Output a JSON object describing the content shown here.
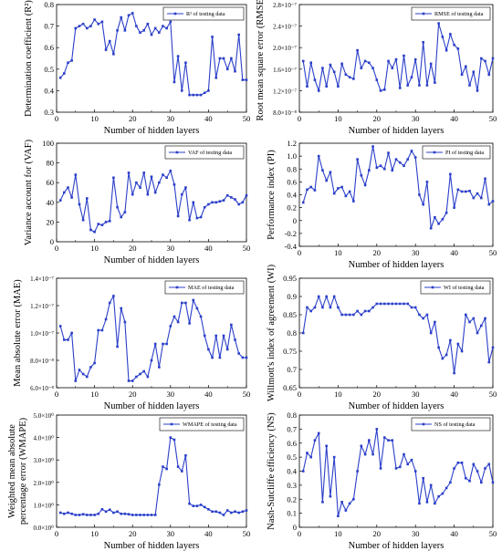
{
  "chart_data": [
    {
      "type": "line",
      "title": "",
      "xlabel": "Number of hidden layers",
      "ylabel": "Determination coefficient (R²)",
      "xlim": [
        0,
        50
      ],
      "ylim": [
        0.3,
        0.8
      ],
      "x_ticks": [
        "0",
        "10",
        "20",
        "30",
        "40",
        "50"
      ],
      "y_ticks": [
        "0.3",
        "0.4",
        "0.5",
        "0.6",
        "0.7",
        "0.8"
      ],
      "legend": "top-right",
      "color": "#2b3fc9",
      "series": [
        {
          "name": "R² of testing data",
          "x": [
            1,
            2,
            3,
            4,
            5,
            6,
            7,
            8,
            9,
            10,
            11,
            12,
            13,
            14,
            15,
            16,
            17,
            18,
            19,
            20,
            21,
            22,
            23,
            24,
            25,
            26,
            27,
            28,
            29,
            30,
            31,
            32,
            33,
            34,
            35,
            36,
            37,
            38,
            39,
            40,
            41,
            42,
            43,
            44,
            45,
            46,
            47,
            48,
            49,
            50
          ],
          "values": [
            0.46,
            0.48,
            0.53,
            0.54,
            0.69,
            0.7,
            0.71,
            0.69,
            0.7,
            0.73,
            0.71,
            0.72,
            0.59,
            0.63,
            0.57,
            0.68,
            0.74,
            0.68,
            0.75,
            0.76,
            0.7,
            0.67,
            0.68,
            0.71,
            0.66,
            0.69,
            0.67,
            0.7,
            0.69,
            0.72,
            0.44,
            0.56,
            0.4,
            0.53,
            0.38,
            0.38,
            0.38,
            0.38,
            0.39,
            0.4,
            0.65,
            0.46,
            0.55,
            0.55,
            0.5,
            0.55,
            0.49,
            0.66,
            0.45,
            0.45
          ]
        }
      ]
    },
    {
      "type": "line",
      "title": "",
      "xlabel": "Number of hidden layers",
      "ylabel": "Root mean square error (RMSE)",
      "xlim": [
        0,
        50
      ],
      "ylim": [
        0.8,
        2.8
      ],
      "y_scale_note": "×10⁻⁷",
      "x_ticks": [
        "0",
        "10",
        "20",
        "30",
        "40",
        "50"
      ],
      "y_ticks": [
        "8.0×10⁻⁸",
        "1.2×10⁻⁷",
        "1.6×10⁻⁷",
        "2.0×10⁻⁷",
        "2.4×10⁻⁷",
        "2.8×10⁻⁷"
      ],
      "legend": "top-right",
      "color": "#2b3fc9",
      "series": [
        {
          "name": "RMSE of testing data",
          "x": [
            1,
            2,
            3,
            4,
            5,
            6,
            7,
            8,
            9,
            10,
            11,
            12,
            13,
            14,
            15,
            16,
            17,
            18,
            19,
            20,
            21,
            22,
            23,
            24,
            25,
            26,
            27,
            28,
            29,
            30,
            31,
            32,
            33,
            34,
            35,
            36,
            37,
            38,
            39,
            40,
            41,
            42,
            43,
            44,
            45,
            46,
            47,
            48,
            49,
            50
          ],
          "values": [
            1.75,
            1.28,
            1.72,
            1.4,
            1.2,
            1.62,
            1.28,
            1.68,
            1.55,
            1.28,
            1.7,
            1.5,
            1.45,
            1.42,
            1.95,
            1.62,
            1.75,
            1.72,
            1.62,
            1.4,
            1.2,
            1.22,
            1.75,
            1.62,
            1.78,
            1.25,
            1.85,
            1.3,
            1.45,
            1.78,
            1.3,
            2.1,
            1.3,
            1.7,
            1.35,
            2.45,
            2.2,
            1.95,
            2.25,
            2.05,
            1.98,
            1.5,
            1.65,
            1.3,
            1.55,
            1.2,
            1.8,
            1.75,
            1.5,
            1.8
          ]
        }
      ]
    },
    {
      "type": "line",
      "title": "",
      "xlabel": "Number of hidden layers",
      "ylabel": "Variance account for (VAF)",
      "xlim": [
        0,
        50
      ],
      "ylim": [
        0,
        100
      ],
      "x_ticks": [
        "0",
        "10",
        "20",
        "30",
        "40",
        "50"
      ],
      "y_ticks": [
        "0",
        "20",
        "40",
        "60",
        "80",
        "100"
      ],
      "legend": "top-right",
      "color": "#2b3fc9",
      "series": [
        {
          "name": "VAF of testing data",
          "x": [
            1,
            2,
            3,
            4,
            5,
            6,
            7,
            8,
            9,
            10,
            11,
            12,
            13,
            14,
            15,
            16,
            17,
            18,
            19,
            20,
            21,
            22,
            23,
            24,
            25,
            26,
            27,
            28,
            29,
            30,
            31,
            32,
            33,
            34,
            35,
            36,
            37,
            38,
            39,
            40,
            41,
            42,
            43,
            44,
            45,
            46,
            47,
            48,
            49,
            50
          ],
          "values": [
            42,
            50,
            55,
            45,
            68,
            38,
            22,
            44,
            12,
            10,
            18,
            17,
            20,
            21,
            65,
            35,
            25,
            30,
            70,
            48,
            60,
            55,
            70,
            48,
            66,
            50,
            60,
            68,
            65,
            72,
            58,
            26,
            48,
            55,
            22,
            40,
            24,
            25,
            35,
            38,
            40,
            40,
            41,
            42,
            47,
            45,
            43,
            38,
            40,
            47
          ]
        }
      ]
    },
    {
      "type": "line",
      "title": "",
      "xlabel": "Number of hidden layers",
      "ylabel": "Performance index (PI)",
      "xlim": [
        0,
        50
      ],
      "ylim": [
        -0.4,
        1.2
      ],
      "x_ticks": [
        "0",
        "10",
        "20",
        "30",
        "40",
        "50"
      ],
      "y_ticks": [
        "-0.4",
        "-0.2",
        "0",
        "0.2",
        "0.4",
        "0.6",
        "0.8",
        "1.0",
        "1.2"
      ],
      "legend": "top-right",
      "color": "#2b3fc9",
      "series": [
        {
          "name": "PI of testing data",
          "x": [
            1,
            2,
            3,
            4,
            5,
            6,
            7,
            8,
            9,
            10,
            11,
            12,
            13,
            14,
            15,
            16,
            17,
            18,
            19,
            20,
            21,
            22,
            23,
            24,
            25,
            26,
            27,
            28,
            29,
            30,
            31,
            32,
            33,
            34,
            35,
            36,
            37,
            38,
            39,
            40,
            41,
            42,
            43,
            44,
            45,
            46,
            47,
            48,
            49,
            50
          ],
          "values": [
            0.28,
            0.48,
            0.52,
            0.47,
            1.0,
            0.78,
            0.62,
            0.75,
            0.42,
            0.5,
            0.52,
            0.38,
            0.45,
            0.3,
            0.95,
            0.7,
            0.55,
            0.78,
            1.15,
            0.82,
            0.85,
            0.8,
            1.05,
            0.78,
            0.95,
            0.9,
            0.85,
            0.95,
            1.08,
            0.98,
            0.4,
            0.25,
            0.6,
            -0.12,
            0.05,
            -0.05,
            0.02,
            0.12,
            0.72,
            0.2,
            0.48,
            0.45,
            0.45,
            0.46,
            0.35,
            0.42,
            0.35,
            0.65,
            0.25,
            0.3
          ]
        }
      ]
    },
    {
      "type": "line",
      "title": "",
      "xlabel": "Number of hidden layers",
      "ylabel": "Mean absolute error (MAE)",
      "xlim": [
        0,
        50
      ],
      "ylim": [
        0.6,
        1.4
      ],
      "y_scale_note": "×10⁻⁷",
      "x_ticks": [
        "0",
        "10",
        "20",
        "30",
        "40",
        "50"
      ],
      "y_ticks": [
        "6.0×10⁻⁸",
        "8.0×10⁻⁸",
        "1.0×10⁻⁷",
        "1.2×10⁻⁷",
        "1.4×10⁻⁷"
      ],
      "legend": "top-right",
      "color": "#2b3fc9",
      "series": [
        {
          "name": "MAE of testing data",
          "x": [
            1,
            2,
            3,
            4,
            5,
            6,
            7,
            8,
            9,
            10,
            11,
            12,
            13,
            14,
            15,
            16,
            17,
            18,
            19,
            20,
            21,
            22,
            23,
            24,
            25,
            26,
            27,
            28,
            29,
            30,
            31,
            32,
            33,
            34,
            35,
            36,
            37,
            38,
            39,
            40,
            41,
            42,
            43,
            44,
            45,
            46,
            47,
            48,
            49,
            50
          ],
          "values": [
            1.05,
            0.95,
            0.95,
            1.0,
            0.65,
            0.73,
            0.7,
            0.68,
            0.75,
            0.78,
            1.02,
            1.02,
            1.1,
            1.22,
            1.27,
            0.9,
            1.18,
            1.08,
            0.65,
            0.65,
            0.68,
            0.7,
            0.72,
            0.68,
            0.8,
            0.92,
            0.75,
            0.92,
            0.92,
            1.05,
            1.12,
            1.08,
            1.22,
            1.22,
            1.07,
            1.24,
            1.18,
            1.12,
            0.98,
            0.88,
            0.82,
            0.98,
            0.82,
            0.98,
            0.88,
            1.06,
            0.95,
            0.85,
            0.82,
            0.82
          ]
        }
      ]
    },
    {
      "type": "line",
      "title": "",
      "xlabel": "Number of hidden layers",
      "ylabel": "Willmott's index of agreement (WI)",
      "xlim": [
        0,
        50
      ],
      "ylim": [
        0.65,
        0.95
      ],
      "x_ticks": [
        "0",
        "10",
        "20",
        "30",
        "40",
        "50"
      ],
      "y_ticks": [
        "0.65",
        "0.7",
        "0.75",
        "0.8",
        "0.85",
        "0.9",
        "0.95"
      ],
      "legend": "top-right",
      "color": "#2b3fc9",
      "series": [
        {
          "name": "WI of testing data",
          "x": [
            1,
            2,
            3,
            4,
            5,
            6,
            7,
            8,
            9,
            10,
            11,
            12,
            13,
            14,
            15,
            16,
            17,
            18,
            19,
            20,
            21,
            22,
            23,
            24,
            25,
            26,
            27,
            28,
            29,
            30,
            31,
            32,
            33,
            34,
            35,
            36,
            37,
            38,
            39,
            40,
            41,
            42,
            43,
            44,
            45,
            46,
            47,
            48,
            49,
            50
          ],
          "values": [
            0.8,
            0.87,
            0.86,
            0.87,
            0.9,
            0.87,
            0.9,
            0.87,
            0.9,
            0.87,
            0.85,
            0.85,
            0.85,
            0.85,
            0.86,
            0.85,
            0.86,
            0.86,
            0.87,
            0.88,
            0.88,
            0.88,
            0.88,
            0.88,
            0.88,
            0.88,
            0.88,
            0.88,
            0.87,
            0.87,
            0.85,
            0.84,
            0.85,
            0.8,
            0.83,
            0.76,
            0.73,
            0.74,
            0.78,
            0.69,
            0.77,
            0.75,
            0.85,
            0.83,
            0.84,
            0.8,
            0.82,
            0.84,
            0.72,
            0.76
          ]
        }
      ]
    },
    {
      "type": "line",
      "title": "",
      "xlabel": "Number of hidden layers",
      "ylabel": "Weighted mean absolute percentage error (WMAPE)",
      "xlim": [
        0,
        50
      ],
      "ylim": [
        0,
        5
      ],
      "x_ticks": [
        "0",
        "10",
        "20",
        "30",
        "40",
        "50"
      ],
      "y_ticks": [
        "0.0×10⁰",
        "1.0×10⁰",
        "2.0×10⁰",
        "3.0×10⁰",
        "4.0×10⁰",
        "5.0×10⁰"
      ],
      "legend": "top-right",
      "color": "#2b3fc9",
      "series": [
        {
          "name": "WMAPE of testing data",
          "x": [
            1,
            2,
            3,
            4,
            5,
            6,
            7,
            8,
            9,
            10,
            11,
            12,
            13,
            14,
            15,
            16,
            17,
            18,
            19,
            20,
            21,
            22,
            23,
            24,
            25,
            26,
            27,
            28,
            29,
            30,
            31,
            32,
            33,
            34,
            35,
            36,
            37,
            38,
            39,
            40,
            41,
            42,
            43,
            44,
            45,
            46,
            47,
            48,
            49,
            50
          ],
          "values": [
            0.65,
            0.6,
            0.65,
            0.6,
            0.55,
            0.55,
            0.58,
            0.55,
            0.55,
            0.55,
            0.6,
            0.8,
            0.7,
            0.78,
            0.65,
            0.7,
            0.6,
            0.6,
            0.58,
            0.55,
            0.55,
            0.55,
            0.55,
            0.55,
            0.55,
            0.55,
            1.9,
            2.7,
            2.6,
            4.0,
            3.9,
            2.7,
            2.5,
            3.2,
            1.05,
            0.95,
            0.95,
            1.0,
            0.9,
            0.8,
            0.7,
            0.7,
            0.65,
            0.55,
            0.75,
            0.65,
            0.7,
            0.65,
            0.7,
            0.75
          ]
        }
      ]
    },
    {
      "type": "line",
      "title": "",
      "xlabel": "Number of hidden layers",
      "ylabel": "Nash-Sutcliffe efficiency (NS)",
      "xlim": [
        0,
        50
      ],
      "ylim": [
        0,
        0.8
      ],
      "x_ticks": [
        "0",
        "10",
        "20",
        "30",
        "40",
        "50"
      ],
      "y_ticks": [
        "0",
        "0.1",
        "0.2",
        "0.3",
        "0.4",
        "0.5",
        "0.6",
        "0.7",
        "0.8"
      ],
      "legend": "top-right",
      "color": "#2b3fc9",
      "series": [
        {
          "name": "NS of testing data",
          "x": [
            1,
            2,
            3,
            4,
            5,
            6,
            7,
            8,
            9,
            10,
            11,
            12,
            13,
            14,
            15,
            16,
            17,
            18,
            19,
            20,
            21,
            22,
            23,
            24,
            25,
            26,
            27,
            28,
            29,
            30,
            31,
            32,
            33,
            34,
            35,
            36,
            37,
            38,
            39,
            40,
            41,
            42,
            43,
            44,
            45,
            46,
            47,
            48,
            49,
            50
          ],
          "values": [
            0.4,
            0.53,
            0.5,
            0.62,
            0.67,
            0.18,
            0.58,
            0.22,
            0.5,
            0.08,
            0.18,
            0.12,
            0.17,
            0.2,
            0.4,
            0.58,
            0.52,
            0.62,
            0.52,
            0.7,
            0.42,
            0.64,
            0.62,
            0.62,
            0.42,
            0.43,
            0.52,
            0.45,
            0.48,
            0.4,
            0.17,
            0.35,
            0.18,
            0.3,
            0.17,
            0.22,
            0.24,
            0.28,
            0.32,
            0.42,
            0.46,
            0.46,
            0.35,
            0.33,
            0.45,
            0.4,
            0.32,
            0.42,
            0.45,
            0.32
          ]
        }
      ]
    }
  ]
}
